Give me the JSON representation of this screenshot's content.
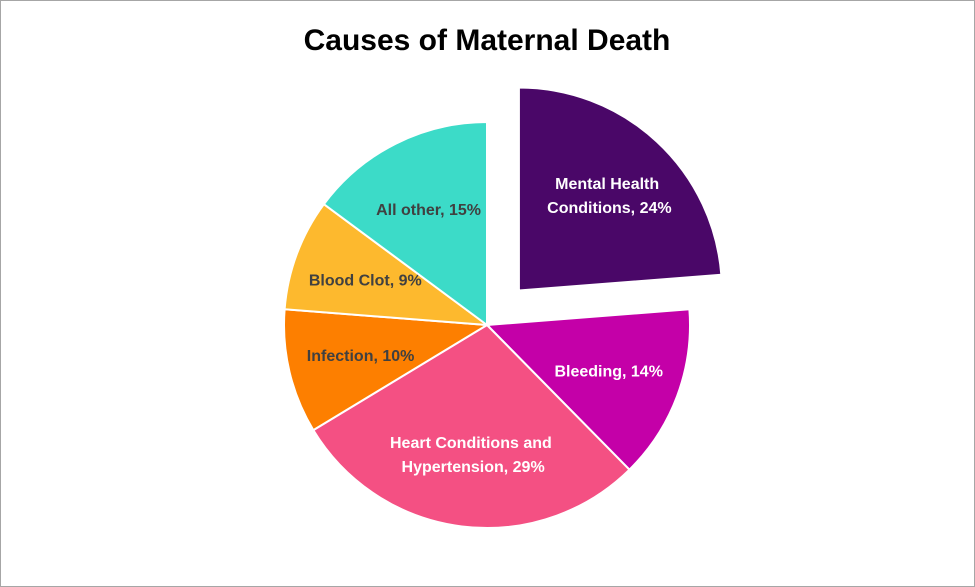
{
  "chart_data": {
    "type": "pie",
    "title": "Causes of Maternal Death",
    "values": [
      24,
      14,
      29,
      10,
      9,
      15
    ],
    "value_labels": [
      "Mental Health Conditions, 24%",
      "Bleeding, 14%",
      "Heart Conditions and Hypertension, 29%",
      "Infection, 10%",
      "Blood Clot, 9%",
      "All other, 15%"
    ],
    "colors": [
      "#4a0768",
      "#c400a8",
      "#f45083",
      "#fd7f00",
      "#fdb92e",
      "#3cdbc8"
    ],
    "exploded": [
      0
    ]
  }
}
